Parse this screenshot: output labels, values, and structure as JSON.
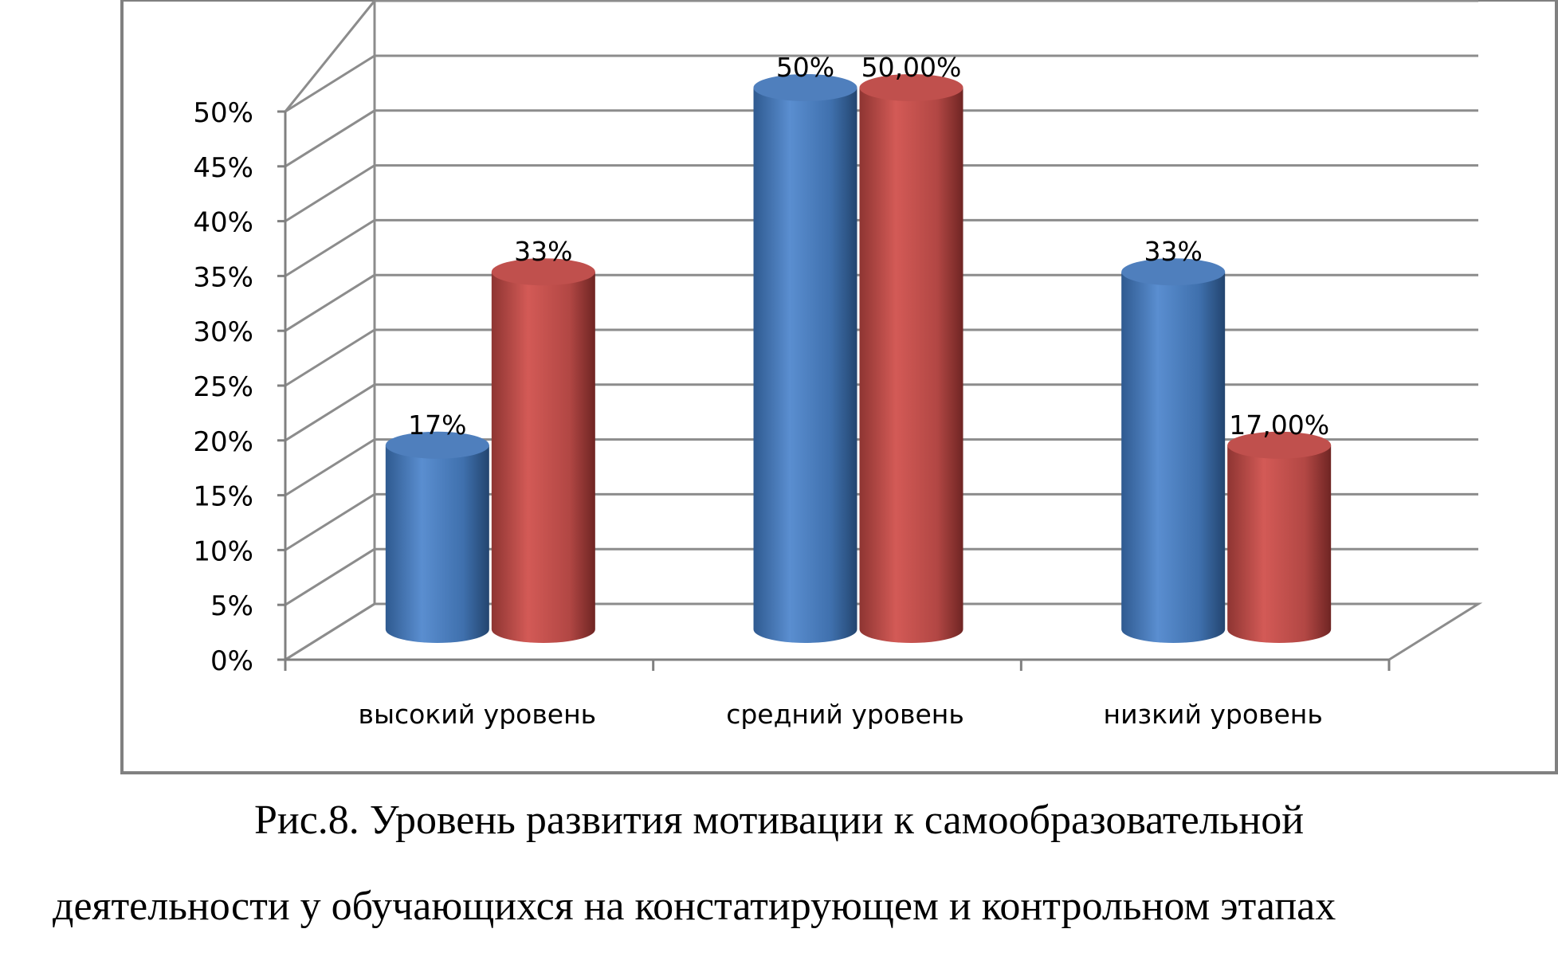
{
  "chart_data": {
    "type": "bar",
    "style": "3d-cylinder",
    "categories": [
      "высокий уровень",
      "средний уровень",
      "низкий уровень"
    ],
    "series": [
      {
        "values": [
          0.17,
          0.5,
          0.33
        ],
        "labels": [
          "17%",
          "50%",
          "33%"
        ],
        "color": "#4F81BD"
      },
      {
        "values": [
          0.33,
          0.5,
          0.17
        ],
        "labels": [
          "33%",
          "50,00%",
          "17,00%"
        ],
        "color": "#C0504D"
      }
    ],
    "ylim": [
      0,
      0.5
    ],
    "yticks": [
      "0%",
      "5%",
      "10%",
      "15%",
      "20%",
      "25%",
      "30%",
      "35%",
      "40%",
      "45%",
      "50%"
    ],
    "grid": true,
    "legend": "none"
  },
  "caption": {
    "line1": "Рис.8. Уровень развития мотивации к самообразовательной",
    "line2": "деятельности у обучающихся на констатирующем и контрольном этапах"
  }
}
